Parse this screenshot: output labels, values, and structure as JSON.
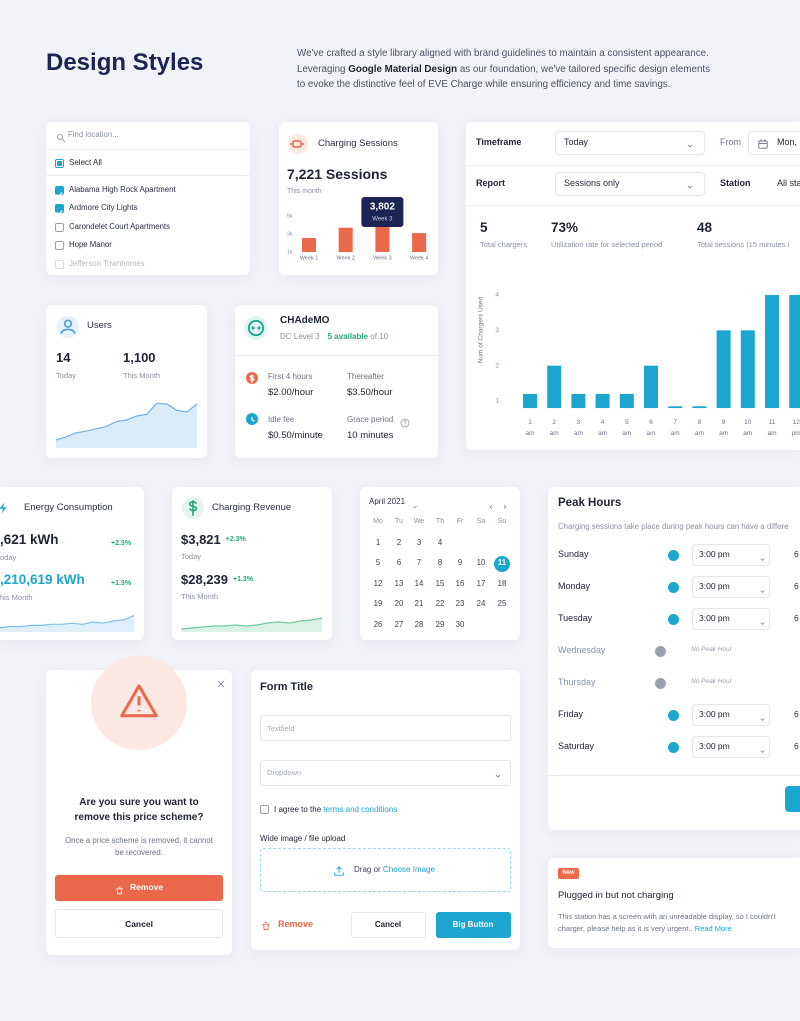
{
  "header": {
    "title": "Design Styles",
    "line1": "We've crafted a style library aligned with brand guidelines to maintain a consistent appearance.",
    "line2_start": "Leveraging",
    "line2_bold": "Google Material Design",
    "line2_end": "as our foundation, we've tailored specific design elements",
    "line3": "to evoke the distinctive feel of EVE Charge while ensuring efficiency and time savings."
  },
  "location": {
    "placeholder": "Find location...",
    "select_all": "Select All",
    "items": [
      {
        "label": "Alabama High Rock Apartment",
        "checked": true
      },
      {
        "label": "Ardmore City Lights",
        "checked": true
      },
      {
        "label": "Carondelet Court Apartments",
        "checked": false
      },
      {
        "label": "Hope Manor",
        "checked": false
      },
      {
        "label": "Jefferson Townhomes",
        "checked": false
      }
    ]
  },
  "sessions_card": {
    "title": "Charging Sessions",
    "total": "7,221 Sessions",
    "period": "This month"
  },
  "filters": {
    "timeframe_label": "Timeframe",
    "timeframe": "Today",
    "from_label": "From",
    "from": "Mon,",
    "report_label": "Report",
    "report": "Sessions only",
    "station_label": "Station",
    "station": "All sta",
    "stats": [
      {
        "value": "5",
        "label": "Total chargers"
      },
      {
        "value": "73%",
        "label": "Utilization rate for selected period"
      },
      {
        "value": "48",
        "label": "Total sessions (15 minutes i"
      }
    ]
  },
  "users_card": {
    "title": "Users",
    "stats": [
      {
        "value": "14",
        "label": "Today"
      },
      {
        "value": "1,100",
        "label": "This Month"
      }
    ]
  },
  "charger": {
    "name": "CHAdeMO",
    "level": "DC Level 3",
    "available": "5 available",
    "total": "of 10",
    "fees": [
      {
        "label": "First 4 hours",
        "value": "$2.00/hour"
      },
      {
        "label": "Thereafter",
        "value": "$3.50/hour"
      },
      {
        "label": "Idle fee",
        "value": "$0.50/minute"
      },
      {
        "label": "Grace period",
        "value": "10 minutes"
      }
    ]
  },
  "energy_card": {
    "title": "Energy Consumption",
    "stats": [
      {
        "value": ",621 kWh",
        "change": "+2.3%",
        "label": "oday"
      },
      {
        "value": ",210,619 kWh",
        "change": "+1.3%",
        "label": "his Month"
      }
    ]
  },
  "revenue_card": {
    "title": "Charging Revenue",
    "stats": [
      {
        "value": "$3,821",
        "change": "+2.3%",
        "label": "Today"
      },
      {
        "value": "$28,239",
        "change": "+1.3%",
        "label": "This Month"
      }
    ]
  },
  "calendar": {
    "month": "April 2021",
    "weekdays": [
      "Mo",
      "Tu",
      "We",
      "Th",
      "Fr",
      "Sa",
      "Su"
    ],
    "weeks": [
      [
        "1",
        "2",
        "3",
        "4"
      ],
      [
        "5",
        "6",
        "7",
        "8",
        "9",
        "10",
        "11"
      ],
      [
        "12",
        "13",
        "14",
        "15",
        "16",
        "17",
        "18"
      ],
      [
        "19",
        "20",
        "21",
        "22",
        "23",
        "24",
        "25"
      ],
      [
        "26",
        "27",
        "28",
        "29",
        "30"
      ]
    ],
    "selected": "11"
  },
  "peak_hours": {
    "title": "Peak Hours",
    "description": "Charging sessions take place during peak hours can have a differe",
    "days": [
      {
        "day": "Sunday",
        "enabled": true,
        "start": "3:00 pm",
        "end": "6"
      },
      {
        "day": "Monday",
        "enabled": true,
        "start": "3:00 pm",
        "end": "6"
      },
      {
        "day": "Tuesday",
        "enabled": true,
        "start": "3:00 pm",
        "end": "6"
      },
      {
        "day": "Wednesday",
        "enabled": false,
        "note": "No Peak Hour"
      },
      {
        "day": "Thursday",
        "enabled": false,
        "note": "No Peak Hour"
      },
      {
        "day": "Friday",
        "enabled": true,
        "start": "3:00 pm",
        "end": "6"
      },
      {
        "day": "Saturday",
        "enabled": true,
        "start": "3:00 pm",
        "end": "6"
      }
    ]
  },
  "dialog": {
    "title_line1": "Are you sure you want to",
    "title_line2": "remove this price scheme?",
    "body_line1": "Once a price scheme is removed, it cannot",
    "body_line2": "be recovered.",
    "confirm": "Remove",
    "cancel": "Cancel"
  },
  "form": {
    "title": "Form Title",
    "textfield": "Textfield",
    "dropdown": "Dropdown",
    "agree": "I agree to the",
    "terms": "terms and conditions",
    "upload_label": "Wide image / file upload",
    "drag": "Drag or",
    "choose": "Choose Image",
    "remove": "Remove",
    "cancel": "Cancel",
    "submit": "Big Button"
  },
  "notification": {
    "badge": "New",
    "title": "Plugged in but not charging",
    "line1": "This station has a screen with an unreadable display, so I couldn't",
    "line2": "charger, please help as it is very urgent..",
    "link": "Read More"
  },
  "chart_data": [
    {
      "type": "bar",
      "categories": [
        "Week 1",
        "Week 2",
        "Week 3",
        "Week 4"
      ],
      "values": [
        2550,
        3700,
        3802,
        3100
      ],
      "value_labels": [
        null,
        null,
        "3,802",
        null
      ],
      "color": "#e9694a",
      "ylim": [
        1000,
        5000
      ],
      "yticks": [
        {
          "value": 1000,
          "label": "1k"
        },
        {
          "value": 3000,
          "label": "3k"
        },
        {
          "value": 5000,
          "label": "5k"
        }
      ]
    },
    {
      "type": "bar",
      "y_label": "Num of Chargers Used",
      "categories": [
        "1 am",
        "2 am",
        "3 am",
        "4 am",
        "5 am",
        "6 am",
        "7 am",
        "8 am",
        "9 am",
        "10 am",
        "11 am",
        "12 pm"
      ],
      "values": [
        1.2,
        2,
        1.2,
        1.2,
        1.2,
        2,
        0.85,
        0.85,
        3,
        3,
        4,
        4
      ],
      "color": "#1ba5cf",
      "ylim": [
        0.8,
        4.3
      ],
      "yticks": [
        1,
        2,
        3,
        4
      ]
    },
    {
      "type": "area",
      "values": [
        10,
        14,
        19,
        21,
        24,
        27,
        33,
        35,
        40,
        42,
        56,
        55,
        47,
        45,
        55
      ],
      "color": "#6fb2e6",
      "ylim": [
        0,
        60
      ]
    },
    {
      "type": "area",
      "values": [
        4,
        5,
        5,
        6,
        6,
        7,
        7,
        8,
        7,
        9,
        8,
        10,
        11,
        15
      ],
      "color": "#7ec0ec",
      "ylim": [
        0,
        20
      ]
    },
    {
      "type": "area",
      "values": [
        3,
        4,
        5,
        6,
        6,
        7,
        6,
        7,
        9,
        10,
        9,
        11,
        12,
        14
      ],
      "color": "#6fcaa0",
      "ylim": [
        0,
        20
      ]
    }
  ]
}
